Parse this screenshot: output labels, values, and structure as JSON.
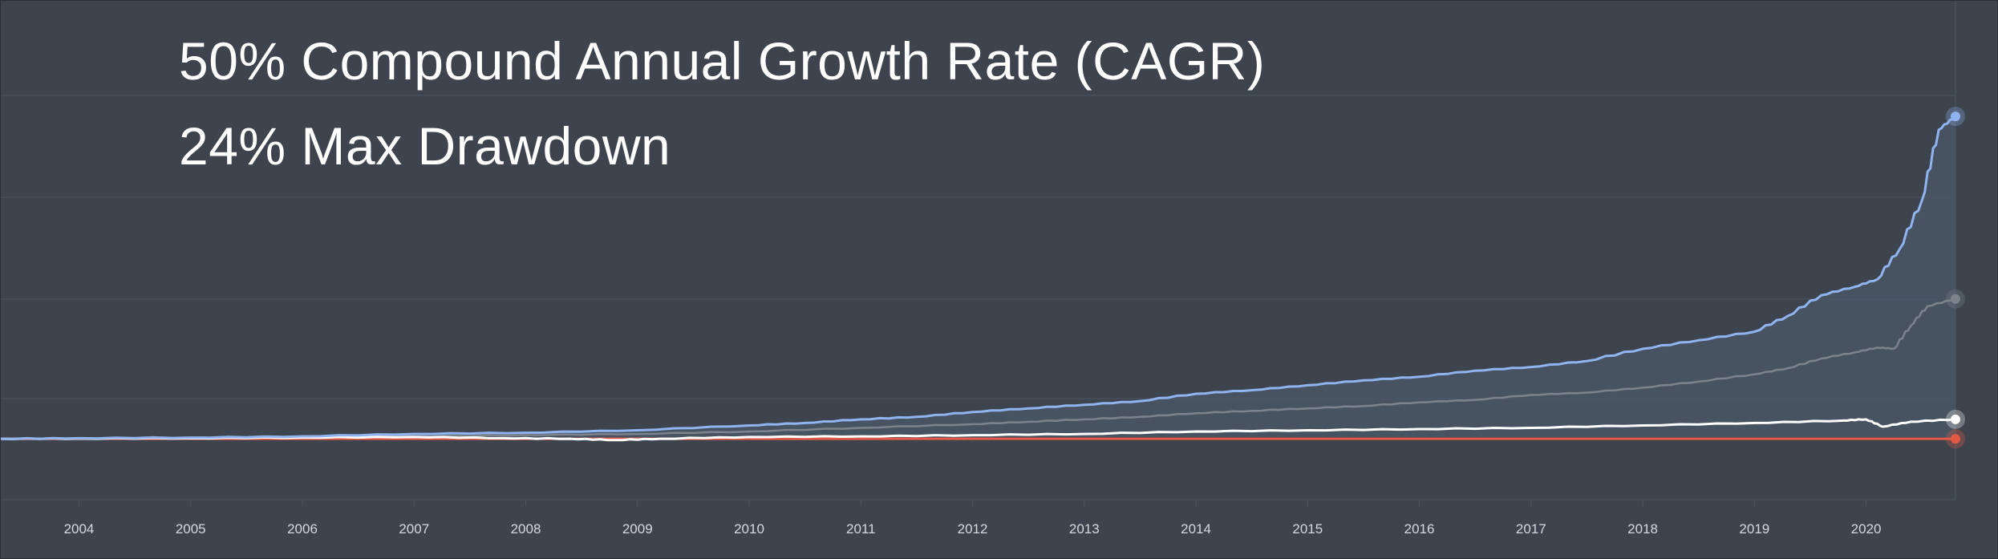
{
  "headlines": {
    "cagr": "50% Compound Annual Growth Rate (CAGR)",
    "drawdown": "24% Max Drawdown"
  },
  "colors": {
    "background": "#3d444e",
    "grid": "#4c5560",
    "strategy": "#8fb4ef",
    "strategy_fill": "#4a5666",
    "secondary": "#7c838c",
    "benchmark": "#ffffff",
    "baseline": "#e25a45",
    "tick_label": "#d5d9de"
  },
  "chart_data": {
    "type": "line",
    "x_axis": {
      "ticks": [
        "2004",
        "2005",
        "2006",
        "2007",
        "2008",
        "2009",
        "2010",
        "2011",
        "2012",
        "2013",
        "2014",
        "2015",
        "2016",
        "2017",
        "2018",
        "2019",
        "2020"
      ],
      "range": [
        2003.3,
        2020.8
      ]
    },
    "y_axis": {
      "range": [
        -50,
        360
      ],
      "labels_shown": false
    },
    "grid": true,
    "legend": "none",
    "series": [
      {
        "key": "strategy",
        "x": [
          2003.3,
          2004.0,
          2005.0,
          2006.0,
          2007.0,
          2008.0,
          2009.0,
          2010.0,
          2010.5,
          2011.0,
          2011.5,
          2012.0,
          2012.5,
          2013.0,
          2013.5,
          2014.0,
          2014.5,
          2015.0,
          2015.5,
          2016.0,
          2016.5,
          2017.0,
          2017.5,
          2018.0,
          2018.5,
          2019.0,
          2019.3,
          2019.6,
          2019.9,
          2020.1,
          2020.3,
          2020.5,
          2020.65,
          2020.8
        ],
        "y": [
          0,
          0.5,
          1,
          2,
          4,
          5,
          7,
          11,
          13,
          16,
          18,
          22,
          25,
          28,
          31,
          37,
          40,
          44,
          48,
          51,
          56,
          59,
          64,
          74,
          81,
          88,
          101,
          118,
          125,
          131,
          156,
          196,
          254,
          265
        ]
      },
      {
        "key": "secondary",
        "x": [
          2003.3,
          2004.0,
          2005.0,
          2006.0,
          2007.0,
          2008.0,
          2009.0,
          2010.0,
          2011.0,
          2012.0,
          2012.5,
          2013.0,
          2013.5,
          2014.0,
          2014.5,
          2015.0,
          2015.5,
          2016.0,
          2016.5,
          2017.0,
          2017.5,
          2018.0,
          2018.5,
          2019.0,
          2019.3,
          2019.6,
          2019.9,
          2020.1,
          2020.25,
          2020.4,
          2020.55,
          2020.8
        ],
        "y": [
          0,
          0.3,
          0.5,
          1,
          2,
          3,
          4,
          6,
          9,
          12,
          14,
          16,
          18,
          21,
          23,
          25,
          27,
          30,
          32,
          36,
          38,
          42,
          47,
          53,
          58,
          66,
          71,
          75,
          74,
          93,
          109,
          115
        ]
      },
      {
        "key": "benchmark",
        "x": [
          2003.3,
          2004.0,
          2005.0,
          2006.0,
          2007.0,
          2007.8,
          2008.4,
          2008.8,
          2009.2,
          2010.0,
          2011.0,
          2012.0,
          2013.0,
          2014.0,
          2015.0,
          2016.0,
          2017.0,
          2018.0,
          2019.0,
          2019.8,
          2020.0,
          2020.15,
          2020.4,
          2020.8
        ],
        "y": [
          0,
          0.2,
          0.5,
          1,
          1.5,
          0.5,
          0,
          -1,
          0,
          1.5,
          2,
          3,
          4,
          6,
          7,
          8,
          9,
          11,
          13,
          15,
          16,
          10,
          14,
          16
        ]
      },
      {
        "key": "baseline",
        "x": [
          2003.3,
          2020.8
        ],
        "y": [
          0,
          0
        ]
      }
    ]
  }
}
